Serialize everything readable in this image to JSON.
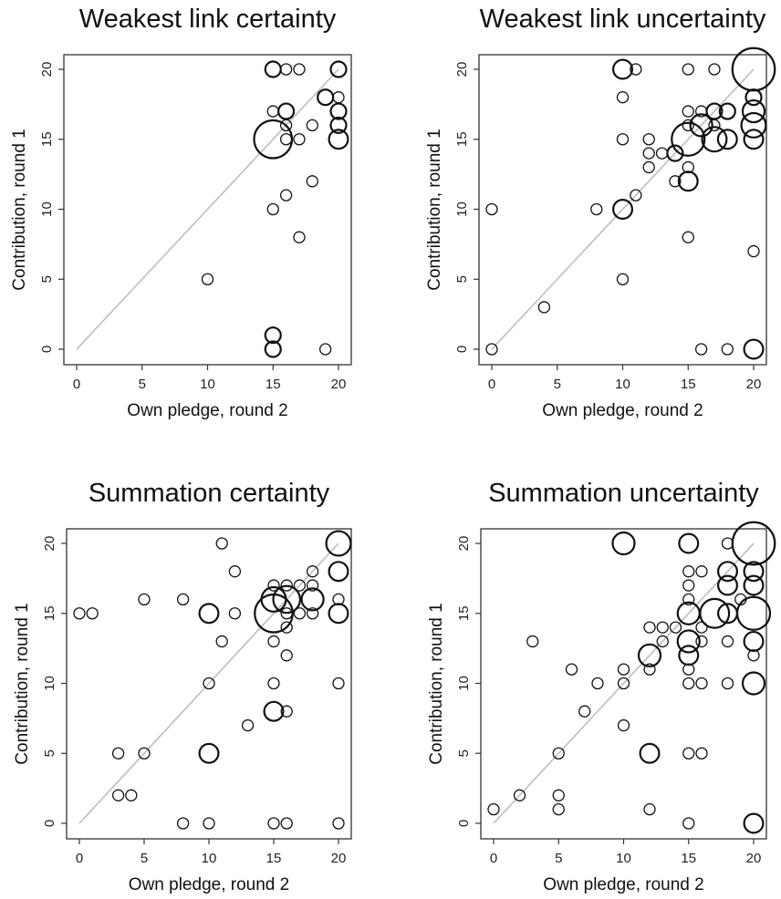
{
  "chart_data": [
    {
      "type": "scatter",
      "title": "Weakest link certainty",
      "xlabel": "Own pledge, round 2",
      "ylabel": "Contribution, round 1",
      "xlim": [
        0,
        20
      ],
      "ylim": [
        0,
        20
      ],
      "xticks": [
        "0",
        "5",
        "10",
        "15",
        "20"
      ],
      "yticks": [
        "0",
        "5",
        "10",
        "15",
        "20"
      ],
      "reference_line": "y = x",
      "points": [
        {
          "x": 10,
          "y": 5,
          "n": 1
        },
        {
          "x": 15,
          "y": 20,
          "n": 2
        },
        {
          "x": 16,
          "y": 20,
          "n": 1
        },
        {
          "x": 17,
          "y": 20,
          "n": 1
        },
        {
          "x": 20,
          "y": 20,
          "n": 2
        },
        {
          "x": 19,
          "y": 18,
          "n": 2
        },
        {
          "x": 20,
          "y": 18,
          "n": 1
        },
        {
          "x": 15,
          "y": 17,
          "n": 1
        },
        {
          "x": 16,
          "y": 17,
          "n": 2
        },
        {
          "x": 20,
          "y": 17,
          "n": 2
        },
        {
          "x": 16,
          "y": 16,
          "n": 1
        },
        {
          "x": 18,
          "y": 16,
          "n": 1
        },
        {
          "x": 20,
          "y": 16,
          "n": 2
        },
        {
          "x": 15,
          "y": 15,
          "n": 12
        },
        {
          "x": 16,
          "y": 15,
          "n": 1
        },
        {
          "x": 17,
          "y": 15,
          "n": 1
        },
        {
          "x": 20,
          "y": 15,
          "n": 3
        },
        {
          "x": 18,
          "y": 12,
          "n": 1
        },
        {
          "x": 16,
          "y": 11,
          "n": 1
        },
        {
          "x": 15,
          "y": 10,
          "n": 1
        },
        {
          "x": 17,
          "y": 8,
          "n": 1
        },
        {
          "x": 15,
          "y": 1,
          "n": 2
        },
        {
          "x": 15,
          "y": 0,
          "n": 2
        },
        {
          "x": 19,
          "y": 0,
          "n": 1
        }
      ]
    },
    {
      "type": "scatter",
      "title": "Weakest link uncertainty",
      "xlabel": "Own pledge, round 2",
      "ylabel": "Contribution, round 1",
      "xlim": [
        0,
        20
      ],
      "ylim": [
        0,
        20
      ],
      "xticks": [
        "0",
        "5",
        "10",
        "15",
        "20"
      ],
      "yticks": [
        "0",
        "5",
        "10",
        "15",
        "20"
      ],
      "reference_line": "y = x",
      "points": [
        {
          "x": 0,
          "y": 10,
          "n": 1
        },
        {
          "x": 0,
          "y": 0,
          "n": 1
        },
        {
          "x": 4,
          "y": 3,
          "n": 1
        },
        {
          "x": 8,
          "y": 10,
          "n": 1
        },
        {
          "x": 10,
          "y": 20,
          "n": 3
        },
        {
          "x": 11,
          "y": 20,
          "n": 1
        },
        {
          "x": 10,
          "y": 18,
          "n": 1
        },
        {
          "x": 10,
          "y": 15,
          "n": 1
        },
        {
          "x": 10,
          "y": 10,
          "n": 3
        },
        {
          "x": 10,
          "y": 5,
          "n": 1
        },
        {
          "x": 11,
          "y": 11,
          "n": 1
        },
        {
          "x": 12,
          "y": 15,
          "n": 1
        },
        {
          "x": 12,
          "y": 14,
          "n": 1
        },
        {
          "x": 12,
          "y": 13,
          "n": 1
        },
        {
          "x": 13,
          "y": 14,
          "n": 1
        },
        {
          "x": 14,
          "y": 14,
          "n": 2
        },
        {
          "x": 14,
          "y": 12,
          "n": 1
        },
        {
          "x": 15,
          "y": 20,
          "n": 1
        },
        {
          "x": 15,
          "y": 17,
          "n": 1
        },
        {
          "x": 15,
          "y": 16,
          "n": 1
        },
        {
          "x": 15,
          "y": 15,
          "n": 9
        },
        {
          "x": 15,
          "y": 13,
          "n": 1
        },
        {
          "x": 15,
          "y": 12,
          "n": 3
        },
        {
          "x": 15,
          "y": 8,
          "n": 1
        },
        {
          "x": 16,
          "y": 17,
          "n": 1
        },
        {
          "x": 16,
          "y": 16,
          "n": 4
        },
        {
          "x": 16,
          "y": 0,
          "n": 1
        },
        {
          "x": 17,
          "y": 20,
          "n": 1
        },
        {
          "x": 17,
          "y": 17,
          "n": 2
        },
        {
          "x": 17,
          "y": 16,
          "n": 1
        },
        {
          "x": 17,
          "y": 15,
          "n": 5
        },
        {
          "x": 18,
          "y": 17,
          "n": 2
        },
        {
          "x": 18,
          "y": 15,
          "n": 3
        },
        {
          "x": 18,
          "y": 0,
          "n": 1
        },
        {
          "x": 20,
          "y": 20,
          "n": 15
        },
        {
          "x": 20,
          "y": 18,
          "n": 2
        },
        {
          "x": 20,
          "y": 17,
          "n": 4
        },
        {
          "x": 20,
          "y": 16,
          "n": 5
        },
        {
          "x": 20,
          "y": 15,
          "n": 3
        },
        {
          "x": 20,
          "y": 7,
          "n": 1
        },
        {
          "x": 20,
          "y": 0,
          "n": 3
        }
      ]
    },
    {
      "type": "scatter",
      "title": "Summation certainty",
      "xlabel": "Own pledge, round 2",
      "ylabel": "Contribution, round 1",
      "xlim": [
        0,
        20
      ],
      "ylim": [
        0,
        20
      ],
      "xticks": [
        "0",
        "5",
        "10",
        "15",
        "20"
      ],
      "yticks": [
        "0",
        "5",
        "10",
        "15",
        "20"
      ],
      "reference_line": "y = x",
      "points": [
        {
          "x": 0,
          "y": 15,
          "n": 1
        },
        {
          "x": 1,
          "y": 15,
          "n": 1
        },
        {
          "x": 3,
          "y": 5,
          "n": 1
        },
        {
          "x": 3,
          "y": 2,
          "n": 1
        },
        {
          "x": 4,
          "y": 2,
          "n": 1
        },
        {
          "x": 5,
          "y": 16,
          "n": 1
        },
        {
          "x": 5,
          "y": 5,
          "n": 1
        },
        {
          "x": 8,
          "y": 16,
          "n": 1
        },
        {
          "x": 8,
          "y": 0,
          "n": 1
        },
        {
          "x": 10,
          "y": 15,
          "n": 3
        },
        {
          "x": 10,
          "y": 10,
          "n": 1
        },
        {
          "x": 10,
          "y": 5,
          "n": 3
        },
        {
          "x": 10,
          "y": 0,
          "n": 1
        },
        {
          "x": 11,
          "y": 20,
          "n": 1
        },
        {
          "x": 11,
          "y": 13,
          "n": 1
        },
        {
          "x": 12,
          "y": 18,
          "n": 1
        },
        {
          "x": 12,
          "y": 15,
          "n": 1
        },
        {
          "x": 13,
          "y": 7,
          "n": 1
        },
        {
          "x": 15,
          "y": 17,
          "n": 1
        },
        {
          "x": 15,
          "y": 16,
          "n": 5
        },
        {
          "x": 15,
          "y": 15,
          "n": 12
        },
        {
          "x": 15,
          "y": 13,
          "n": 1
        },
        {
          "x": 15,
          "y": 10,
          "n": 1
        },
        {
          "x": 15,
          "y": 8,
          "n": 3
        },
        {
          "x": 15,
          "y": 0,
          "n": 1
        },
        {
          "x": 16,
          "y": 17,
          "n": 1
        },
        {
          "x": 16,
          "y": 16,
          "n": 6
        },
        {
          "x": 16,
          "y": 15,
          "n": 1
        },
        {
          "x": 16,
          "y": 14,
          "n": 1
        },
        {
          "x": 16,
          "y": 12,
          "n": 1
        },
        {
          "x": 16,
          "y": 8,
          "n": 1
        },
        {
          "x": 16,
          "y": 0,
          "n": 1
        },
        {
          "x": 17,
          "y": 17,
          "n": 1
        },
        {
          "x": 17,
          "y": 15,
          "n": 1
        },
        {
          "x": 18,
          "y": 18,
          "n": 1
        },
        {
          "x": 18,
          "y": 17,
          "n": 1
        },
        {
          "x": 18,
          "y": 16,
          "n": 4
        },
        {
          "x": 18,
          "y": 15,
          "n": 1
        },
        {
          "x": 20,
          "y": 20,
          "n": 5
        },
        {
          "x": 20,
          "y": 18,
          "n": 3
        },
        {
          "x": 20,
          "y": 16,
          "n": 1
        },
        {
          "x": 20,
          "y": 15,
          "n": 3
        },
        {
          "x": 20,
          "y": 10,
          "n": 1
        },
        {
          "x": 20,
          "y": 0,
          "n": 1
        }
      ]
    },
    {
      "type": "scatter",
      "title": "Summation uncertainty",
      "xlabel": "Own pledge, round 2",
      "ylabel": "Contribution, round 1",
      "xlim": [
        0,
        20
      ],
      "ylim": [
        0,
        20
      ],
      "xticks": [
        "0",
        "5",
        "10",
        "15",
        "20"
      ],
      "yticks": [
        "0",
        "5",
        "10",
        "15",
        "20"
      ],
      "reference_line": "y = x",
      "points": [
        {
          "x": 0,
          "y": 1,
          "n": 1
        },
        {
          "x": 2,
          "y": 2,
          "n": 1
        },
        {
          "x": 3,
          "y": 13,
          "n": 1
        },
        {
          "x": 5,
          "y": 5,
          "n": 1
        },
        {
          "x": 5,
          "y": 2,
          "n": 1
        },
        {
          "x": 5,
          "y": 1,
          "n": 1
        },
        {
          "x": 6,
          "y": 11,
          "n": 1
        },
        {
          "x": 7,
          "y": 8,
          "n": 1
        },
        {
          "x": 8,
          "y": 10,
          "n": 1
        },
        {
          "x": 10,
          "y": 20,
          "n": 4
        },
        {
          "x": 10,
          "y": 11,
          "n": 1
        },
        {
          "x": 10,
          "y": 10,
          "n": 1
        },
        {
          "x": 10,
          "y": 7,
          "n": 1
        },
        {
          "x": 12,
          "y": 14,
          "n": 1
        },
        {
          "x": 12,
          "y": 12,
          "n": 4
        },
        {
          "x": 12,
          "y": 11,
          "n": 1
        },
        {
          "x": 12,
          "y": 5,
          "n": 3
        },
        {
          "x": 12,
          "y": 1,
          "n": 1
        },
        {
          "x": 13,
          "y": 14,
          "n": 1
        },
        {
          "x": 13,
          "y": 13,
          "n": 1
        },
        {
          "x": 14,
          "y": 14,
          "n": 1
        },
        {
          "x": 15,
          "y": 20,
          "n": 3
        },
        {
          "x": 15,
          "y": 18,
          "n": 1
        },
        {
          "x": 15,
          "y": 17,
          "n": 1
        },
        {
          "x": 15,
          "y": 16,
          "n": 1
        },
        {
          "x": 15,
          "y": 15,
          "n": 4
        },
        {
          "x": 15,
          "y": 13,
          "n": 4
        },
        {
          "x": 15,
          "y": 12,
          "n": 3
        },
        {
          "x": 15,
          "y": 11,
          "n": 1
        },
        {
          "x": 15,
          "y": 10,
          "n": 1
        },
        {
          "x": 15,
          "y": 5,
          "n": 1
        },
        {
          "x": 15,
          "y": 0,
          "n": 1
        },
        {
          "x": 16,
          "y": 18,
          "n": 1
        },
        {
          "x": 16,
          "y": 14,
          "n": 1
        },
        {
          "x": 16,
          "y": 13,
          "n": 1
        },
        {
          "x": 16,
          "y": 10,
          "n": 1
        },
        {
          "x": 16,
          "y": 5,
          "n": 1
        },
        {
          "x": 17,
          "y": 15,
          "n": 7
        },
        {
          "x": 18,
          "y": 20,
          "n": 1
        },
        {
          "x": 18,
          "y": 18,
          "n": 3
        },
        {
          "x": 18,
          "y": 17,
          "n": 3
        },
        {
          "x": 18,
          "y": 15,
          "n": 3
        },
        {
          "x": 18,
          "y": 13,
          "n": 1
        },
        {
          "x": 18,
          "y": 10,
          "n": 1
        },
        {
          "x": 19,
          "y": 16,
          "n": 1
        },
        {
          "x": 20,
          "y": 20,
          "n": 15
        },
        {
          "x": 20,
          "y": 18,
          "n": 3
        },
        {
          "x": 20,
          "y": 17,
          "n": 3
        },
        {
          "x": 20,
          "y": 15,
          "n": 9
        },
        {
          "x": 20,
          "y": 13,
          "n": 3
        },
        {
          "x": 20,
          "y": 12,
          "n": 1
        },
        {
          "x": 20,
          "y": 10,
          "n": 4
        },
        {
          "x": 20,
          "y": 0,
          "n": 3
        }
      ]
    }
  ]
}
